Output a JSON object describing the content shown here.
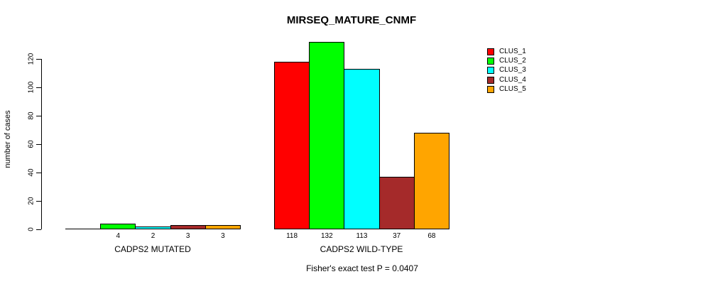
{
  "chart_data": {
    "type": "bar",
    "title": "MIRSEQ_MATURE_CNMF",
    "ylabel": "number of cases",
    "ylim": [
      0,
      120
    ],
    "yticks": [
      "0",
      "20",
      "40",
      "60",
      "80",
      "100",
      "120"
    ],
    "grid": false,
    "legend_position": "top-right-outside",
    "categories": [
      "CADPS2 MUTATED",
      "CADPS2 WILD-TYPE"
    ],
    "series": [
      {
        "name": "CLUS_1",
        "color": "#FF0000",
        "values": [
          0,
          118
        ]
      },
      {
        "name": "CLUS_2",
        "color": "#00FF00",
        "values": [
          4,
          132
        ]
      },
      {
        "name": "CLUS_3",
        "color": "#00FFFF",
        "values": [
          2,
          113
        ]
      },
      {
        "name": "CLUS_4",
        "color": "#A52A2A",
        "values": [
          3,
          37
        ]
      },
      {
        "name": "CLUS_5",
        "color": "#FFA500",
        "values": [
          3,
          68
        ]
      }
    ],
    "bar_value_labels": [
      [
        "",
        "4",
        "2",
        "3",
        "3"
      ],
      [
        "118",
        "132",
        "113",
        "37",
        "68"
      ]
    ],
    "footnote": "Fisher's exact test P = 0.0407"
  }
}
